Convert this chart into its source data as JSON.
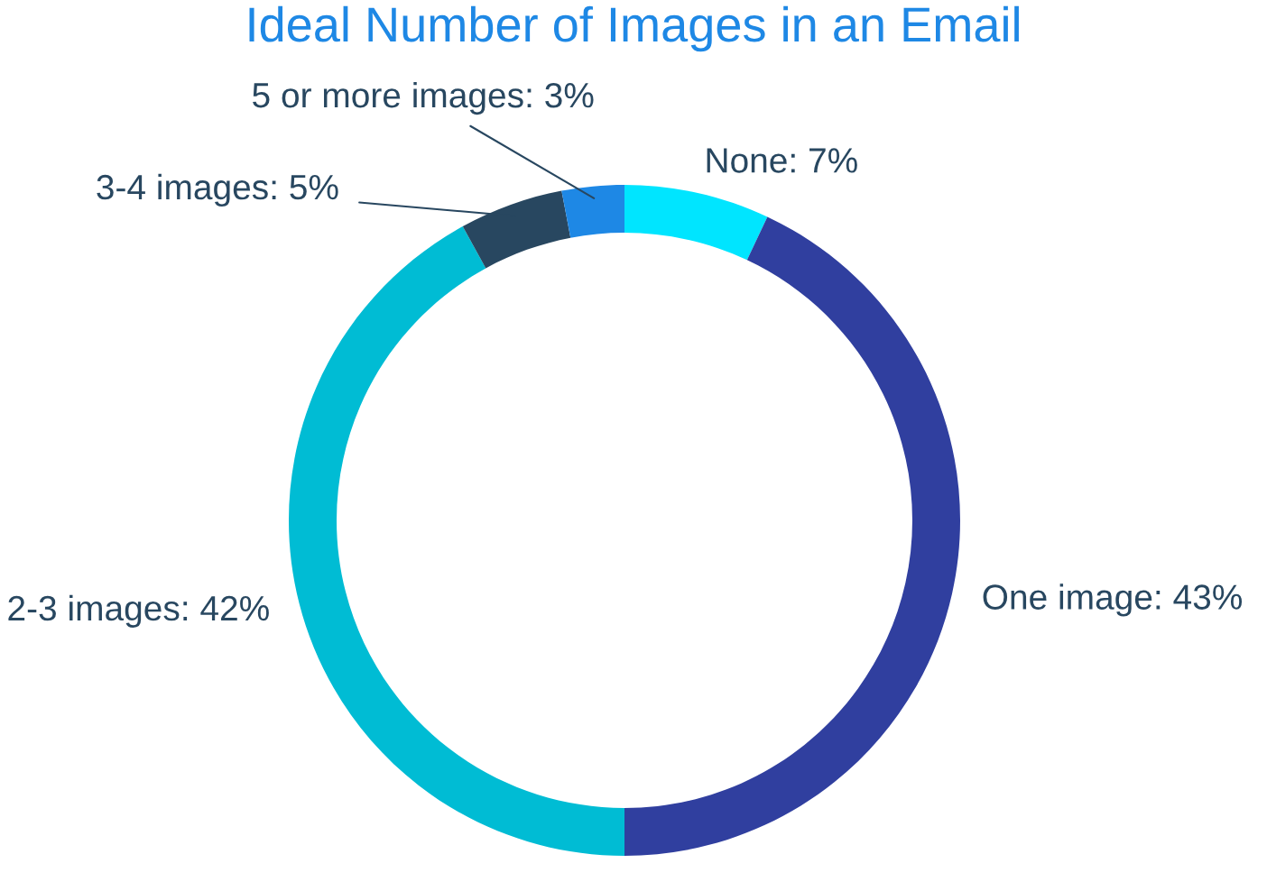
{
  "chart_data": {
    "type": "donut",
    "title": "Ideal Number of Images in an Email",
    "categories": [
      "None",
      "One image",
      "2-3 images",
      "3-4 images",
      "5 or more images"
    ],
    "values": [
      7,
      43,
      42,
      5,
      3
    ],
    "colors": [
      "#00e5ff",
      "#303f9f",
      "#00bcd4",
      "#284760",
      "#1e88e5"
    ],
    "value_labels": [
      "7%",
      "43%",
      "42%",
      "5%",
      "3%"
    ]
  }
}
